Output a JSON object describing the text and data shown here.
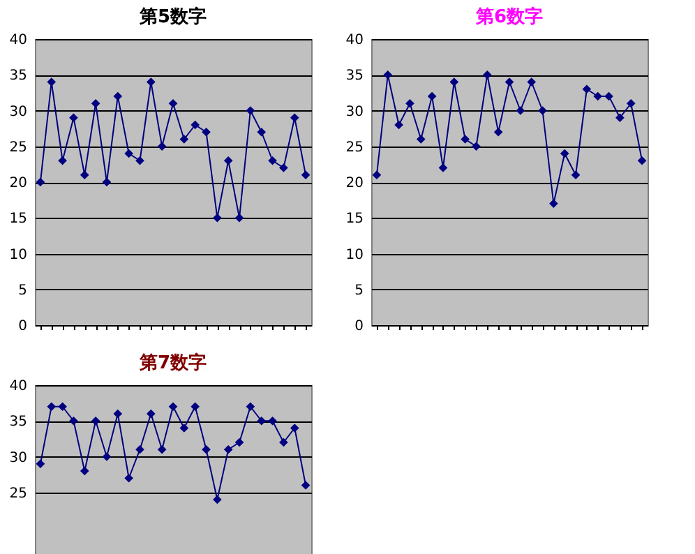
{
  "chart_data": [
    {
      "type": "line",
      "title": "第5数字",
      "categories": [
        null,
        null,
        null,
        null,
        null,
        null,
        null,
        null,
        null,
        null,
        null,
        null,
        null,
        null,
        null,
        null,
        null,
        null,
        null,
        null,
        null,
        null,
        null,
        null,
        null
      ],
      "series": [
        {
          "color": "#000080",
          "values": [
            20,
            34,
            23,
            29,
            21,
            31,
            20,
            32,
            24,
            23,
            34,
            25,
            31,
            26,
            28,
            27,
            15,
            23,
            15,
            30,
            27,
            23,
            22,
            29,
            21
          ]
        }
      ],
      "ylim": [
        0,
        40
      ],
      "yticks": [
        0,
        5,
        10,
        15,
        20,
        25,
        30,
        35,
        40
      ],
      "grid": "y",
      "marker": "diamond",
      "line_style": "solid",
      "tick_labels": "y",
      "legend": false
    },
    {
      "type": "line",
      "title": "第6数字",
      "categories": [
        null,
        null,
        null,
        null,
        null,
        null,
        null,
        null,
        null,
        null,
        null,
        null,
        null,
        null,
        null,
        null,
        null,
        null,
        null,
        null,
        null,
        null,
        null,
        null,
        null
      ],
      "series": [
        {
          "color": "#000080",
          "values": [
            21,
            35,
            28,
            31,
            26,
            32,
            22,
            34,
            26,
            25,
            35,
            27,
            34,
            30,
            34,
            30,
            17,
            24,
            21,
            33,
            32,
            32,
            29,
            31,
            23
          ]
        }
      ],
      "ylim": [
        0,
        40
      ],
      "yticks": [
        0,
        5,
        10,
        15,
        20,
        25,
        30,
        35,
        40
      ],
      "grid": "y",
      "marker": "diamond",
      "line_style": "solid",
      "tick_labels": "y",
      "legend": false
    },
    {
      "type": "line",
      "title": "第7数字",
      "categories": [
        null,
        null,
        null,
        null,
        null,
        null,
        null,
        null,
        null,
        null,
        null,
        null,
        null,
        null,
        null,
        null,
        null,
        null,
        null,
        null,
        null,
        null,
        null,
        null,
        null
      ],
      "series": [
        {
          "color": "#000080",
          "values": [
            29,
            37,
            37,
            35,
            28,
            35,
            30,
            36,
            27,
            31,
            36,
            31,
            37,
            34,
            37,
            31,
            24,
            31,
            32,
            37,
            35,
            35,
            32,
            34,
            26
          ]
        }
      ],
      "ylim": [
        0,
        40
      ],
      "yticks": [
        25,
        30,
        35,
        40
      ],
      "grid": "y",
      "marker": "diamond",
      "line_style": "solid",
      "tick_labels": "y",
      "legend": false
    }
  ]
}
